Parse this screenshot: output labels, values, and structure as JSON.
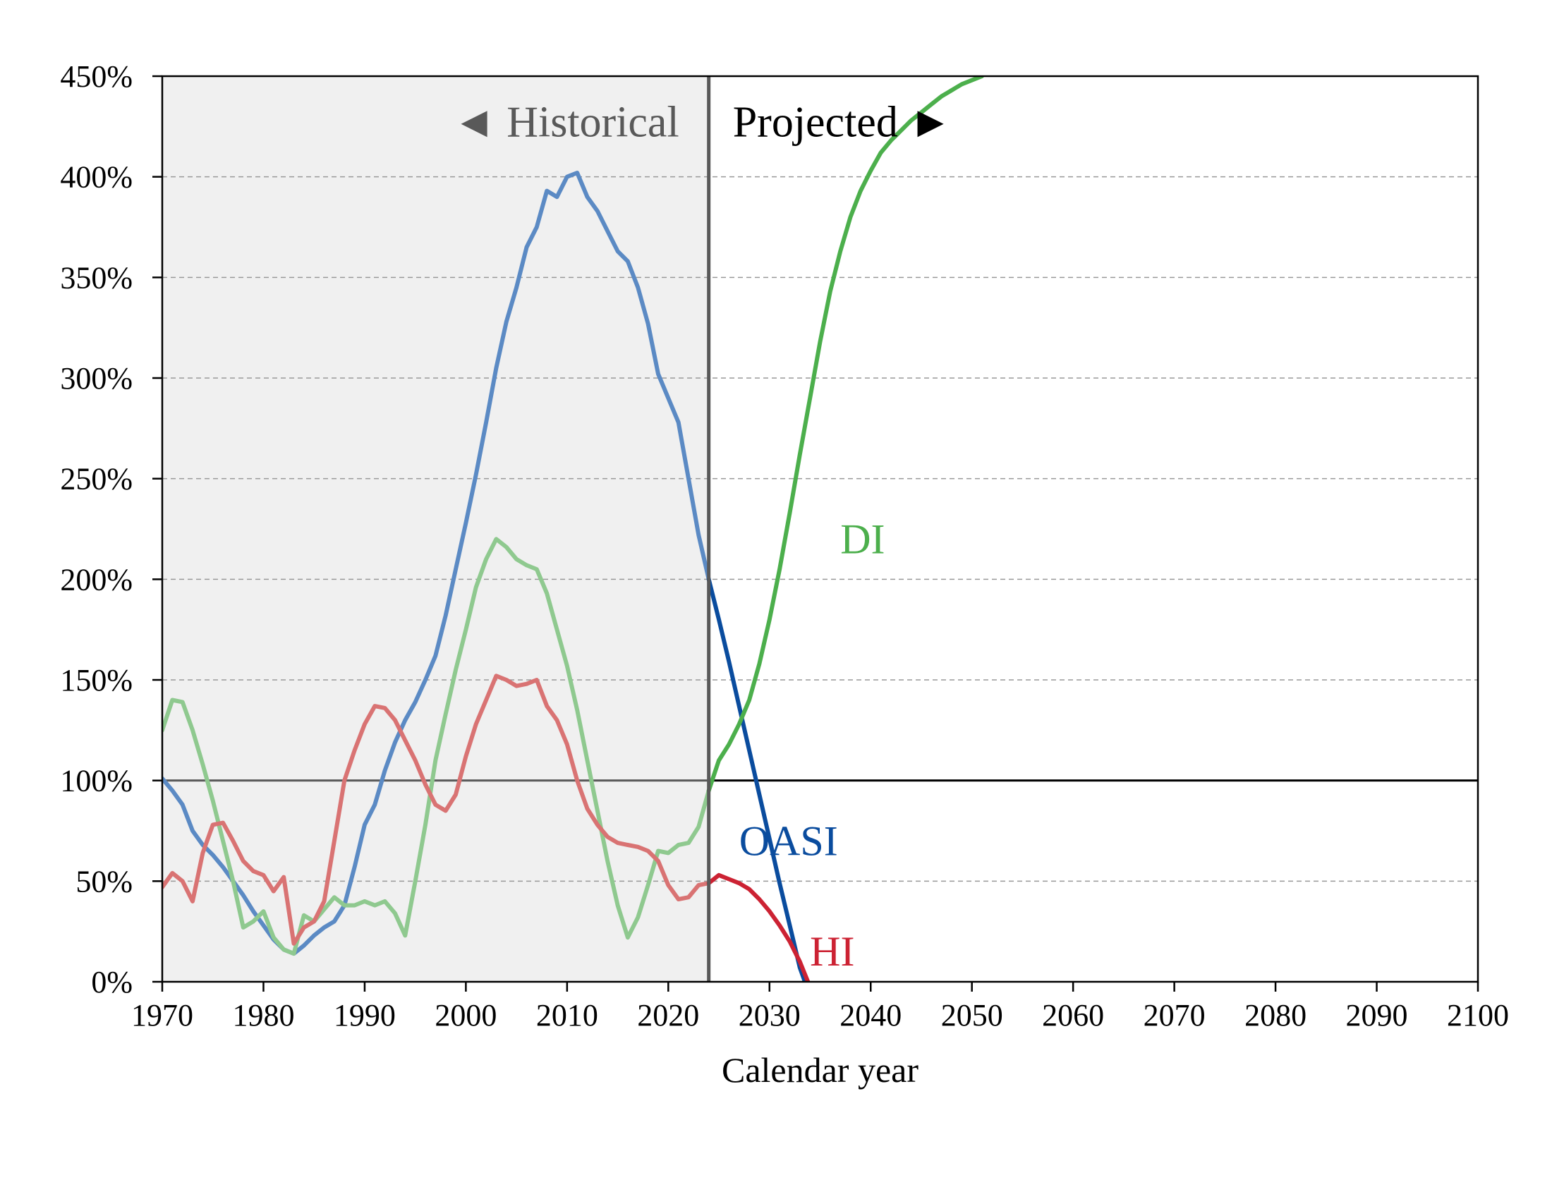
{
  "chart_data": {
    "type": "line",
    "xlabel": "Calendar year",
    "ylabel": "",
    "xlim": [
      1970,
      2100
    ],
    "ylim": [
      0,
      450
    ],
    "x_ticks": [
      1970,
      1980,
      1990,
      2000,
      2010,
      2020,
      2030,
      2040,
      2050,
      2060,
      2070,
      2080,
      2090,
      2100
    ],
    "y_ticks": [
      0,
      50,
      100,
      150,
      200,
      250,
      300,
      350,
      400,
      450
    ],
    "y_tick_labels": [
      "0%",
      "50%",
      "100%",
      "150%",
      "200%",
      "250%",
      "300%",
      "350%",
      "400%",
      "450%"
    ],
    "grid": "horizontal dashed",
    "reference_line": 100,
    "boundary_year": 2024,
    "historical_label": "◄ Historical",
    "projected_label": "Projected ►",
    "colors": {
      "historical_background": "#f0f0f0",
      "boundary": "#595959",
      "grid": "#999999"
    },
    "series": [
      {
        "name": "OASI",
        "historical_color": "#5b8ac4",
        "projected_color": "#0a4c9e",
        "label_position": [
          2027,
          70
        ],
        "historical": [
          [
            1970,
            101
          ],
          [
            1971,
            95
          ],
          [
            1972,
            88
          ],
          [
            1973,
            75
          ],
          [
            1974,
            68
          ],
          [
            1975,
            63
          ],
          [
            1976,
            57
          ],
          [
            1977,
            50
          ],
          [
            1978,
            43
          ],
          [
            1979,
            35
          ],
          [
            1980,
            28
          ],
          [
            1981,
            21
          ],
          [
            1982,
            16
          ],
          [
            1983,
            14
          ],
          [
            1984,
            18
          ],
          [
            1985,
            23
          ],
          [
            1986,
            27
          ],
          [
            1987,
            30
          ],
          [
            1988,
            38
          ],
          [
            1989,
            57
          ],
          [
            1990,
            78
          ],
          [
            1991,
            88
          ],
          [
            1992,
            105
          ],
          [
            1993,
            119
          ],
          [
            1994,
            130
          ],
          [
            1995,
            139
          ],
          [
            1996,
            150
          ],
          [
            1997,
            162
          ],
          [
            1998,
            182
          ],
          [
            1999,
            205
          ],
          [
            2000,
            228
          ],
          [
            2001,
            252
          ],
          [
            2002,
            278
          ],
          [
            2003,
            305
          ],
          [
            2004,
            328
          ],
          [
            2005,
            345
          ],
          [
            2006,
            365
          ],
          [
            2007,
            375
          ],
          [
            2008,
            393
          ],
          [
            2009,
            390
          ],
          [
            2010,
            400
          ],
          [
            2011,
            402
          ],
          [
            2012,
            390
          ],
          [
            2013,
            383
          ],
          [
            2014,
            373
          ],
          [
            2015,
            363
          ],
          [
            2016,
            358
          ],
          [
            2017,
            345
          ],
          [
            2018,
            327
          ],
          [
            2019,
            302
          ],
          [
            2020,
            290
          ],
          [
            2021,
            278
          ],
          [
            2022,
            250
          ],
          [
            2023,
            222
          ],
          [
            2024,
            200
          ]
        ],
        "projected": [
          [
            2024,
            200
          ],
          [
            2025,
            180
          ],
          [
            2026,
            159
          ],
          [
            2027,
            137
          ],
          [
            2028,
            115
          ],
          [
            2029,
            93
          ],
          [
            2030,
            71
          ],
          [
            2031,
            49
          ],
          [
            2032,
            28
          ],
          [
            2033,
            7
          ],
          [
            2033.5,
            0
          ]
        ]
      },
      {
        "name": "DI",
        "historical_color": "#8fc98f",
        "projected_color": "#4caf4c",
        "label_position": [
          2037,
          220
        ],
        "historical": [
          [
            1970,
            125
          ],
          [
            1971,
            140
          ],
          [
            1972,
            139
          ],
          [
            1973,
            125
          ],
          [
            1974,
            108
          ],
          [
            1975,
            90
          ],
          [
            1976,
            70
          ],
          [
            1977,
            50
          ],
          [
            1978,
            27
          ],
          [
            1979,
            30
          ],
          [
            1980,
            35
          ],
          [
            1981,
            22
          ],
          [
            1982,
            16
          ],
          [
            1983,
            14
          ],
          [
            1984,
            33
          ],
          [
            1985,
            30
          ],
          [
            1986,
            36
          ],
          [
            1987,
            42
          ],
          [
            1988,
            38
          ],
          [
            1989,
            38
          ],
          [
            1990,
            40
          ],
          [
            1991,
            38
          ],
          [
            1992,
            40
          ],
          [
            1993,
            34
          ],
          [
            1994,
            23
          ],
          [
            1995,
            50
          ],
          [
            1996,
            78
          ],
          [
            1997,
            110
          ],
          [
            1998,
            133
          ],
          [
            1999,
            155
          ],
          [
            2000,
            175
          ],
          [
            2001,
            196
          ],
          [
            2002,
            210
          ],
          [
            2003,
            220
          ],
          [
            2004,
            216
          ],
          [
            2005,
            210
          ],
          [
            2006,
            207
          ],
          [
            2007,
            205
          ],
          [
            2008,
            193
          ],
          [
            2009,
            175
          ],
          [
            2010,
            157
          ],
          [
            2011,
            135
          ],
          [
            2012,
            110
          ],
          [
            2013,
            85
          ],
          [
            2014,
            60
          ],
          [
            2015,
            38
          ],
          [
            2016,
            22
          ],
          [
            2017,
            32
          ],
          [
            2018,
            48
          ],
          [
            2019,
            65
          ],
          [
            2020,
            64
          ],
          [
            2021,
            68
          ],
          [
            2022,
            69
          ],
          [
            2023,
            77
          ],
          [
            2024,
            95
          ]
        ],
        "projected": [
          [
            2024,
            95
          ],
          [
            2025,
            110
          ],
          [
            2026,
            118
          ],
          [
            2027,
            128
          ],
          [
            2028,
            140
          ],
          [
            2029,
            158
          ],
          [
            2030,
            180
          ],
          [
            2031,
            205
          ],
          [
            2032,
            233
          ],
          [
            2033,
            262
          ],
          [
            2034,
            290
          ],
          [
            2035,
            318
          ],
          [
            2036,
            343
          ],
          [
            2037,
            363
          ],
          [
            2038,
            380
          ],
          [
            2039,
            393
          ],
          [
            2040,
            403
          ],
          [
            2041,
            412
          ],
          [
            2042,
            418
          ],
          [
            2043,
            423
          ],
          [
            2044,
            428
          ],
          [
            2045,
            432
          ],
          [
            2046,
            436
          ],
          [
            2047,
            440
          ],
          [
            2048,
            443
          ],
          [
            2049,
            446
          ],
          [
            2050,
            448
          ],
          [
            2051,
            450
          ]
        ]
      },
      {
        "name": "HI",
        "historical_color": "#d97373",
        "projected_color": "#cc2233",
        "label_position": [
          2034,
          15
        ],
        "historical": [
          [
            1970,
            47
          ],
          [
            1971,
            54
          ],
          [
            1972,
            50
          ],
          [
            1973,
            40
          ],
          [
            1974,
            64
          ],
          [
            1975,
            78
          ],
          [
            1976,
            79
          ],
          [
            1977,
            70
          ],
          [
            1978,
            60
          ],
          [
            1979,
            55
          ],
          [
            1980,
            53
          ],
          [
            1981,
            45
          ],
          [
            1982,
            52
          ],
          [
            1983,
            19
          ],
          [
            1984,
            27
          ],
          [
            1985,
            30
          ],
          [
            1986,
            40
          ],
          [
            1987,
            70
          ],
          [
            1988,
            100
          ],
          [
            1989,
            115
          ],
          [
            1990,
            128
          ],
          [
            1991,
            137
          ],
          [
            1992,
            136
          ],
          [
            1993,
            130
          ],
          [
            1994,
            120
          ],
          [
            1995,
            110
          ],
          [
            1996,
            98
          ],
          [
            1997,
            88
          ],
          [
            1998,
            85
          ],
          [
            1999,
            93
          ],
          [
            2000,
            112
          ],
          [
            2001,
            128
          ],
          [
            2002,
            140
          ],
          [
            2003,
            152
          ],
          [
            2004,
            150
          ],
          [
            2005,
            147
          ],
          [
            2006,
            148
          ],
          [
            2007,
            150
          ],
          [
            2008,
            137
          ],
          [
            2009,
            130
          ],
          [
            2010,
            118
          ],
          [
            2011,
            100
          ],
          [
            2012,
            86
          ],
          [
            2013,
            78
          ],
          [
            2014,
            72
          ],
          [
            2015,
            69
          ],
          [
            2016,
            68
          ],
          [
            2017,
            67
          ],
          [
            2018,
            65
          ],
          [
            2019,
            60
          ],
          [
            2020,
            48
          ],
          [
            2021,
            41
          ],
          [
            2022,
            42
          ],
          [
            2023,
            48
          ],
          [
            2024,
            49
          ]
        ],
        "projected": [
          [
            2024,
            49
          ],
          [
            2025,
            53
          ],
          [
            2026,
            51
          ],
          [
            2027,
            49
          ],
          [
            2028,
            46
          ],
          [
            2029,
            41
          ],
          [
            2030,
            35
          ],
          [
            2031,
            28
          ],
          [
            2032,
            20
          ],
          [
            2033,
            10
          ],
          [
            2033.8,
            0
          ]
        ]
      }
    ]
  }
}
